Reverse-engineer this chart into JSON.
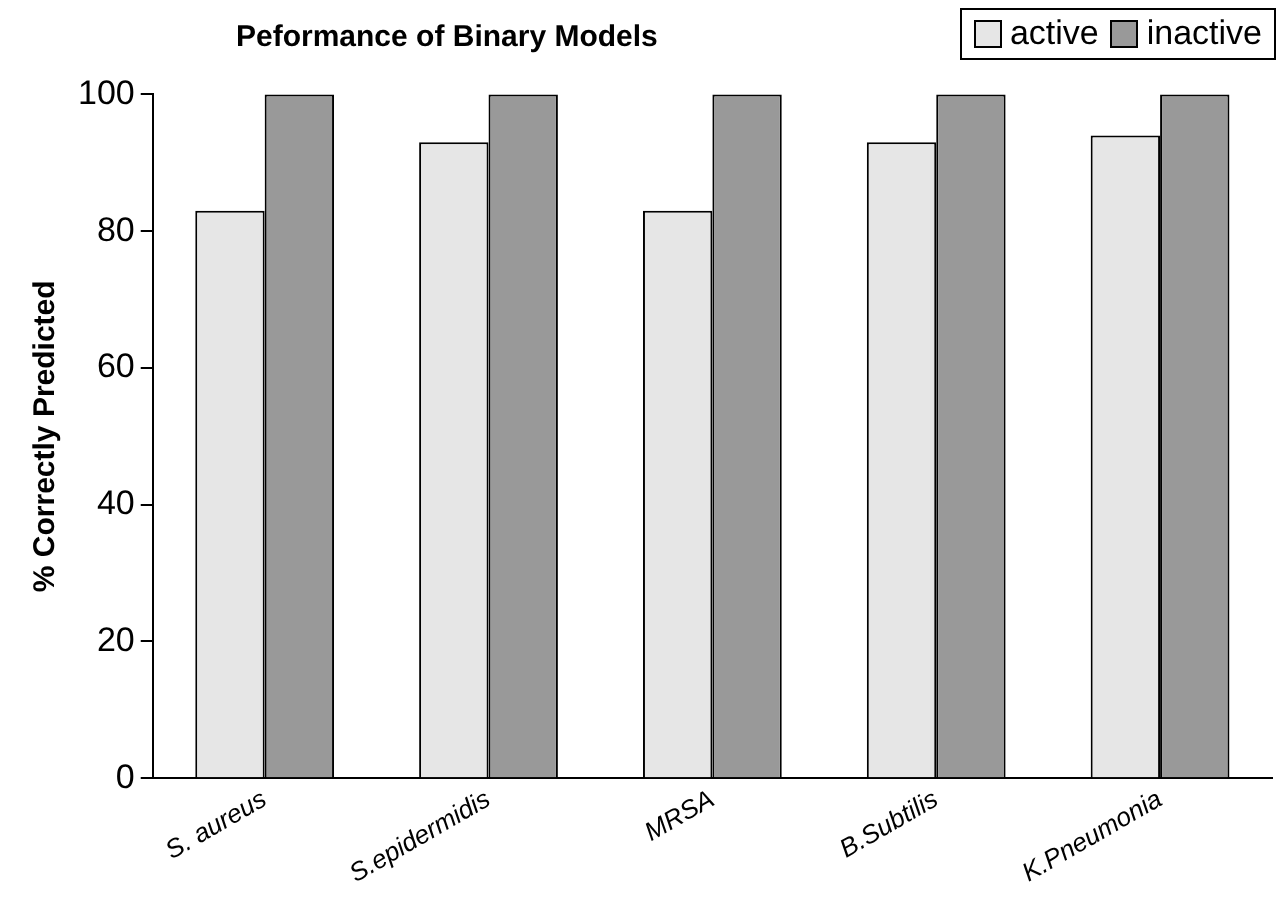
{
  "chart_data": {
    "type": "bar",
    "title": "Peformance of Binary Models",
    "ylabel": "% Correctly Predicted",
    "categories": [
      "S. aureus",
      "S.epidermidis",
      "MRSA",
      "B.Subtilis",
      "K.Pneumonia"
    ],
    "series": [
      {
        "name": "active",
        "color": "#e6e6e6",
        "values": [
          83,
          93,
          83,
          93,
          94
        ]
      },
      {
        "name": "inactive",
        "color": "#999999",
        "values": [
          100,
          100,
          100,
          100,
          100
        ]
      }
    ],
    "ylim": [
      0,
      100
    ],
    "yticks": [
      0,
      20,
      40,
      60,
      80,
      100
    ],
    "grid": false,
    "legend": "top right"
  }
}
